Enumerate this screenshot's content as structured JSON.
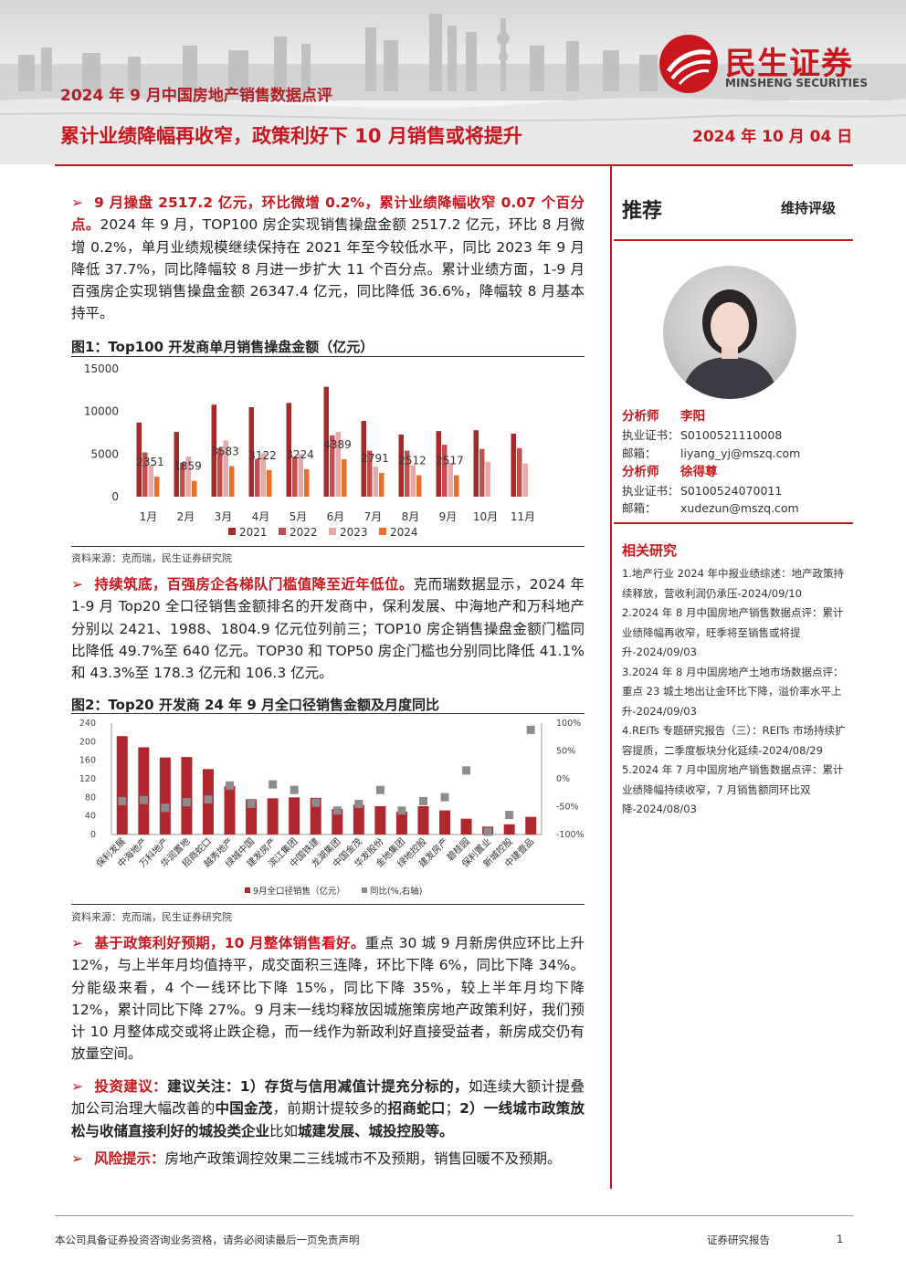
{
  "header": {
    "series": "2024 年 9 月中国房地产销售数据点评",
    "title": "累计业绩降幅再收窄，政策利好下 10 月销售或将提升",
    "date": "2024 年 10 月 04 日",
    "logo_cn": "民生证券",
    "logo_en": "MINSHENG SECURITIES"
  },
  "para1": {
    "lead": "9 月操盘 2517.2 亿元，环比微增 0.2%，累计业绩降幅收窄 0.07 个百分点。",
    "body": "2024 年 9 月，TOP100 房企实现销售操盘金额 2517.2 亿元，环比 8 月微增 0.2%，单月业绩规模继续保持在 2021 年至今较低水平，同比 2023 年 9 月降低 37.7%，同比降幅较 8 月进一步扩大 11 个百分点。累计业绩方面，1-9 月百强房企实现销售操盘金额 26347.4 亿元，同比降低 36.6%，降幅较 8 月基本持平。"
  },
  "fig1": {
    "title": "图1：Top100 开发商单月销售操盘金额（亿元）",
    "source": "资料来源：克而瑞，民生证券研究院"
  },
  "para2": {
    "lead": "持续筑底，百强房企各梯队门槛值降至近年低位。",
    "body": "克而瑞数据显示，2024 年 1-9 月 Top20 全口径销售金额排名的开发商中，保利发展、中海地产和万科地产分别以 2421、1988、1804.9 亿元位列前三；TOP10 房企销售操盘金额门槛同比降低 49.7%至 640 亿元。TOP30 和 TOP50 房企门槛也分别同比降低 41.1%和 43.3%至 178.3 亿元和 106.3 亿元。"
  },
  "fig2": {
    "title": "图2：Top20 开发商 24 年 9 月全口径销售金额及月度同比",
    "source": "资料来源：克而瑞，民生证券研究院"
  },
  "para3": {
    "lead": "基于政策利好预期，10 月整体销售看好。",
    "body": "重点 30 城 9 月新房供应环比上升 12%，与上半年月均值持平，成交面积三连降，环比下降 6%，同比下降 34%。分能级来看，4 个一线环比下降 15%，同比下降 35%，较上半年月均下降 12%，累计同比下降 27%。9 月末一线均释放因城施策房地产政策利好，我们预计 10 月整体成交或将止跌企稳，而一线作为新政利好直接受益者，新房成交仍有放量空间。"
  },
  "para4": {
    "lead": "投资建议：",
    "b1": "建议关注：1）存货与信用减值计提充分标的，",
    "t1": "如连续大额计提叠加公司治理大幅改善的",
    "b2": "中国金茂",
    "t2": "，前期计提较多的",
    "b3": "招商蛇口",
    "t3": "；",
    "b4": "2）一线城市政策放松与收储直接利好的城投类企业",
    "t4": "比如",
    "b5": "城建发展、城投控股等。"
  },
  "para5": {
    "lead": "风险提示：",
    "body": "房地产政策调控效果二三线城市不及预期，销售回暖不及预期。"
  },
  "sidebar": {
    "rating": "推荐",
    "rating_sub": "维持评级",
    "analysts": [
      {
        "role": "分析师",
        "name": "李阳",
        "cert_label": "执业证书：",
        "cert": "S0100521110008",
        "mail_label": "邮箱：",
        "mail": "liyang_yj@mszq.com"
      },
      {
        "role": "分析师",
        "name": "徐得尊",
        "cert_label": "执业证书：",
        "cert": "S0100524070011",
        "mail_label": "邮箱：",
        "mail": "xudezun@mszq.com"
      }
    ],
    "related_title": "相关研究",
    "related": [
      "1.地产行业 2024 年中报业绩综述：地产政策持续释放，营收利润仍承压-2024/09/10",
      "2.2024 年 8 月中国房地产销售数据点评：累计业绩降幅再收窄，旺季将至销售或将提升-2024/09/03",
      "3.2024 年 8 月中国房地产土地市场数据点评：重点 23 城土地出让金环比下降，溢价率水平上升-2024/09/03",
      "4.REITs 专题研究报告（三）：REITs 市场持续扩容提质，二季度板块分化延续-2024/08/29",
      "5.2024 年 7 月中国房地产销售数据点评：累计业绩降幅持续收窄，7 月销售额同环比双降-2024/08/03"
    ]
  },
  "footer": {
    "disclaimer": "本公司具备证券投资咨询业务资格，请务必阅读最后一页免责声明",
    "type": "证券研究报告",
    "page": "1"
  },
  "colors": {
    "brand_red": "#c8161d",
    "s2021": "#a52a2a",
    "s2022": "#c0504d",
    "s2023": "#e6a9a9",
    "s2024": "#e8702a",
    "bar2": "#b0272d",
    "yoy": "#8c8c8c"
  },
  "chart_data": [
    {
      "type": "bar",
      "title": "图1：Top100 开发商单月销售操盘金额（亿元）",
      "categories": [
        "1月",
        "2月",
        "3月",
        "4月",
        "5月",
        "6月",
        "7月",
        "8月",
        "9月",
        "10月",
        "11月"
      ],
      "ylim": [
        0,
        15000
      ],
      "yticks": [
        "15000",
        "10000",
        "5000",
        "0"
      ],
      "legend_position": "bottom",
      "series": [
        {
          "name": "2021",
          "values": [
            8700,
            7600,
            10800,
            10500,
            11000,
            12900,
            8900,
            7300,
            7700,
            7800,
            7400
          ]
        },
        {
          "name": "2022",
          "values": [
            5200,
            4000,
            5700,
            4400,
            4700,
            7200,
            5400,
            5400,
            6100,
            5600,
            5700
          ]
        },
        {
          "name": "2023",
          "values": [
            3700,
            4700,
            6600,
            5100,
            5000,
            7600,
            3500,
            3700,
            4000,
            4100,
            3900
          ]
        },
        {
          "name": "2024",
          "values": [
            2351,
            1859,
            3583,
            3122,
            3224,
            4389,
            2791,
            2512,
            2517,
            null,
            null
          ]
        }
      ],
      "data_labels": [
        "2351",
        "1859",
        "3583",
        "3122",
        "3224",
        "4389",
        "2791",
        "2512",
        "2517"
      ]
    },
    {
      "type": "bar",
      "title": "图2：Top20 开发商 24 年 9 月全口径销售金额及月度同比",
      "categories": [
        "保利发展",
        "中海地产",
        "万科地产",
        "华润置地",
        "招商蛇口",
        "越秀地产",
        "绿城中国",
        "建发房产",
        "滨江集团",
        "中国铁建",
        "龙湖集团",
        "中国金茂",
        "华发股份",
        "金地集团",
        "绿地控股",
        "建发房产",
        "碧桂园",
        "保利置业",
        "新城控股",
        "中建壹品"
      ],
      "ylim": [
        0,
        240
      ],
      "yticks": [
        "240",
        "200",
        "160",
        "120",
        "80",
        "40",
        "0"
      ],
      "y2lim": [
        -100,
        100
      ],
      "y2ticks": [
        "100%",
        "50%",
        "0%",
        "-50%",
        "-100%"
      ],
      "legend_position": "bottom",
      "series": [
        {
          "name": "9月全口径销售（亿元）",
          "values": [
            212,
            188,
            166,
            167,
            141,
            104,
            76,
            78,
            80,
            79,
            55,
            64,
            61,
            49,
            61,
            52,
            34,
            17,
            22,
            38
          ]
        },
        {
          "name": "同比(%,右轴)",
          "values": [
            -40,
            -38,
            -52,
            -42,
            -37,
            -12,
            -45,
            -10,
            -20,
            -43,
            -57,
            -45,
            -20,
            -57,
            -40,
            -33,
            15,
            -95,
            -65,
            88
          ]
        }
      ]
    }
  ]
}
